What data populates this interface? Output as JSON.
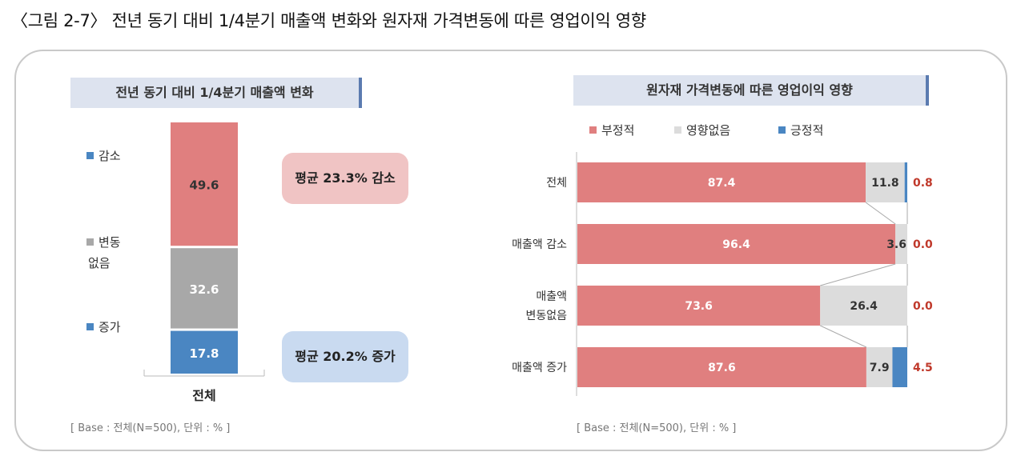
{
  "figure_title": "〈그림 2-7〉 전년 동기 대비 1/4분기 매출액 변화와 원자재 가격변동에 따른 영업이익 영향",
  "colors": {
    "negative": "#e07f7f",
    "none": "#dcdcdc",
    "positive": "#4a86c2",
    "decrease": "#4a86c2",
    "nochange": "#a8a8a8",
    "increase": "#e07f7f",
    "bubble_red": "#f0c4c4",
    "bubble_blue": "#c9daf0",
    "value_red": "#c0392b"
  },
  "left": {
    "title": "전년 동기 대비 1/4분기 매출액 변화",
    "legend": [
      {
        "label": "감소",
        "color": "#4a86c2"
      },
      {
        "label": "변동\n없음",
        "color": "#a8a8a8"
      },
      {
        "label": "증가",
        "color": "#4a86c2"
      }
    ],
    "bubbles": {
      "top": "평균 23.3% 감소",
      "bottom": "평균 20.2% 증가"
    },
    "note": "[ Base : 전체(N=500), 단위 : % ]"
  },
  "right": {
    "title": "원자재 가격변동에 따른 영업이익 영향",
    "note": "[ Base : 전체(N=500), 단위 : % ]"
  },
  "chart_data": [
    {
      "type": "bar",
      "stacked": true,
      "orientation": "vertical",
      "categories": [
        "전체"
      ],
      "series": [
        {
          "name": "감소",
          "values": [
            49.6
          ],
          "color": "#e07f7f"
        },
        {
          "name": "변동없음",
          "values": [
            32.6
          ],
          "color": "#a8a8a8"
        },
        {
          "name": "증가",
          "values": [
            17.8
          ],
          "color": "#4a86c2"
        }
      ],
      "ylim": [
        0,
        100
      ]
    },
    {
      "type": "bar",
      "stacked": true,
      "orientation": "horizontal",
      "categories": [
        "전체",
        "매출액 감소",
        "매출액\n변동없음",
        "매출액 증가"
      ],
      "series": [
        {
          "name": "부정적",
          "values": [
            87.4,
            96.4,
            73.6,
            87.6
          ],
          "color": "#e07f7f"
        },
        {
          "name": "영향없음",
          "values": [
            11.8,
            3.6,
            26.4,
            7.9
          ],
          "color": "#dcdcdc"
        },
        {
          "name": "긍정적",
          "values": [
            0.8,
            0.0,
            0.0,
            4.5
          ],
          "color": "#4a86c2"
        }
      ],
      "legend": "top-left",
      "xlim": [
        0,
        100
      ]
    }
  ]
}
